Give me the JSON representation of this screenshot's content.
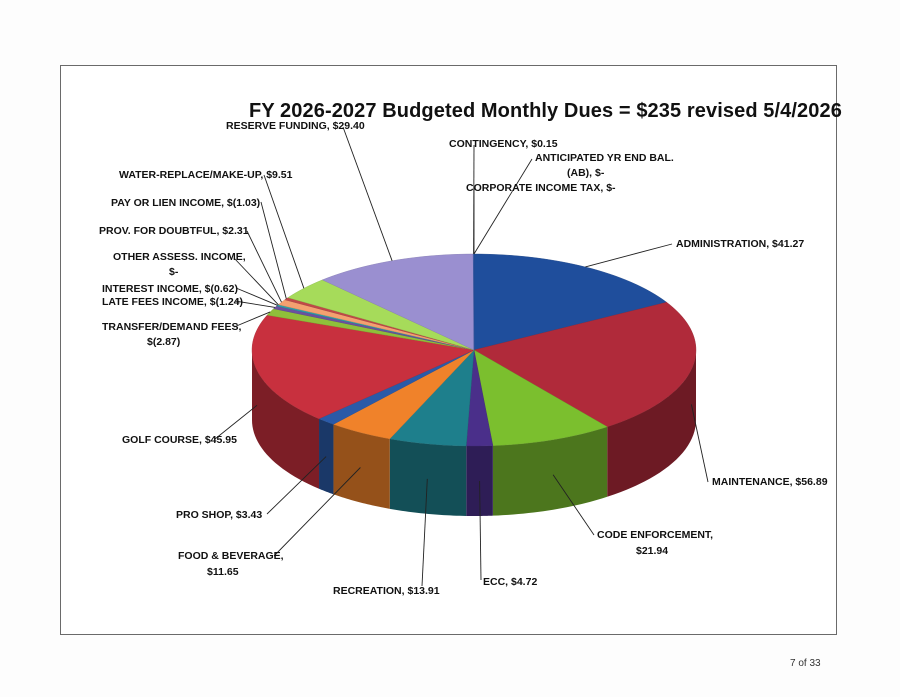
{
  "page_number": "7 of 33",
  "chart_data": {
    "type": "pie",
    "title": "FY 2026-2027 Budgeted Monthly Dues = $235 revised 5/4/2026",
    "slices": [
      {
        "label": "ADMINISTRATION, $41.27",
        "value": 41.27,
        "color": "#1f4e9c"
      },
      {
        "label": "MAINTENANCE, $56.89",
        "value": 56.89,
        "color": "#b02a3a"
      },
      {
        "label": "CODE ENFORCEMENT, $21.94",
        "value": 21.94,
        "color": "#7bbf2e"
      },
      {
        "label": "ECC, $4.72",
        "value": 4.72,
        "color": "#4a2f8a"
      },
      {
        "label": "RECREATION, $13.91",
        "value": 13.91,
        "color": "#1e7f8c"
      },
      {
        "label": "FOOD & BEVERAGE, $11.65",
        "value": 11.65,
        "color": "#f0822a"
      },
      {
        "label": "PRO SHOP, $3.43",
        "value": 3.43,
        "color": "#2a5aa8"
      },
      {
        "label": "GOLF COURSE, $45.95",
        "value": 45.95,
        "color": "#c8303e"
      },
      {
        "label": "TRANSFER/DEMAND FEES, $(2.87)",
        "value": -2.87,
        "color": "#8fbf3a"
      },
      {
        "label": "LATE FEES INCOME, $(1.24)",
        "value": -1.24,
        "color": "#6b4fa0"
      },
      {
        "label": "INTEREST INCOME, $(0.62)",
        "value": -0.62,
        "color": "#2aa0a8"
      },
      {
        "label": "OTHER ASSESS. INCOME, $-",
        "value": 0,
        "color": "#e07a30"
      },
      {
        "label": "PROV. FOR DOUBTFUL, $2.31",
        "value": 2.31,
        "color": "#f4a070"
      },
      {
        "label": "PAY OR LIEN INCOME, $(1.03)",
        "value": -1.03,
        "color": "#c04848"
      },
      {
        "label": "WATER-REPLACE/MAKE-UP, $9.51",
        "value": 9.51,
        "color": "#a6db5a"
      },
      {
        "label": "RESERVE FUNDING, $29.40",
        "value": 29.4,
        "color": "#9a8fd0"
      },
      {
        "label": "CONTINGENCY, $0.15",
        "value": 0.15,
        "color": "#3a5fb0"
      },
      {
        "label": "ANTICIPATED YR END BAL. (AB), $-",
        "value": 0,
        "color": "#2a6fbf"
      },
      {
        "label": "CORPORATE INCOME TAX, $-",
        "value": 0,
        "color": "#1f4e9c"
      }
    ],
    "labels": {
      "admin": "ADMINISTRATION, $41.27",
      "maint": "MAINTENANCE, $56.89",
      "code1": "CODE ENFORCEMENT,",
      "code2": "$21.94",
      "ecc": "ECC, $4.72",
      "rec": "RECREATION, $13.91",
      "food1": "FOOD & BEVERAGE,",
      "food2": "$11.65",
      "pro": "PRO SHOP, $3.43",
      "golf": "GOLF COURSE, $45.95",
      "transfer1": "TRANSFER/DEMAND FEES,",
      "transfer2": "$(2.87)",
      "late": "LATE FEES INCOME, $(1.24)",
      "interest": "INTEREST INCOME, $(0.62)",
      "other1": "OTHER ASSESS. INCOME,",
      "other2": "$-",
      "prov": "PROV. FOR DOUBTFUL, $2.31",
      "pay": "PAY OR LIEN INCOME, $(1.03)",
      "water": "WATER-REPLACE/MAKE-UP, $9.51",
      "reserve": "RESERVE FUNDING, $29.40",
      "contingency": "CONTINGENCY, $0.15",
      "anticipated1": "ANTICIPATED YR END BAL.",
      "anticipated2": "(AB), $-",
      "corporate": "CORPORATE INCOME TAX, $-"
    }
  }
}
